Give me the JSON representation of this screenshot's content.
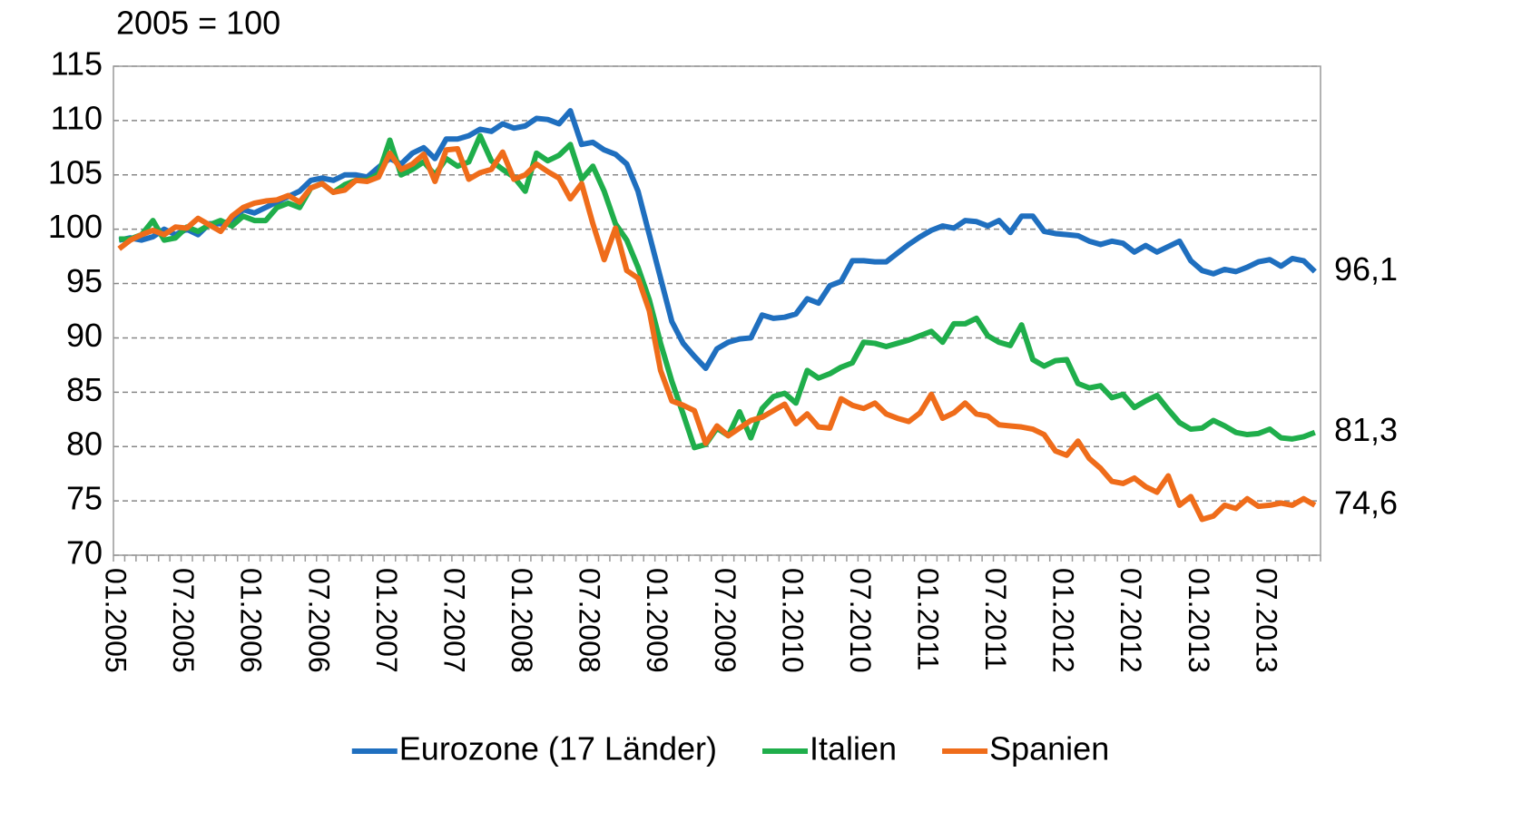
{
  "chart_data": {
    "type": "line",
    "title": "2005 = 100",
    "categories": [
      "01.2005",
      null,
      null,
      null,
      null,
      null,
      "07.2005",
      null,
      null,
      null,
      null,
      null,
      "01.2006",
      null,
      null,
      null,
      null,
      null,
      "07.2006",
      null,
      null,
      null,
      null,
      null,
      "01.2007",
      null,
      null,
      null,
      null,
      null,
      "07.2007",
      null,
      null,
      null,
      null,
      null,
      "01.2008",
      null,
      null,
      null,
      null,
      null,
      "07.2008",
      null,
      null,
      null,
      null,
      null,
      "01.2009",
      null,
      null,
      null,
      null,
      null,
      "07.2009",
      null,
      null,
      null,
      null,
      null,
      "01.2010",
      null,
      null,
      null,
      null,
      null,
      "07.2010",
      null,
      null,
      null,
      null,
      null,
      "01.2011",
      null,
      null,
      null,
      null,
      null,
      "07.2011",
      null,
      null,
      null,
      null,
      null,
      "01.2012",
      null,
      null,
      null,
      null,
      null,
      "07.2012",
      null,
      null,
      null,
      null,
      null,
      "01.2013",
      null,
      null,
      null,
      null,
      null,
      "07.2013",
      null,
      null,
      null,
      null
    ],
    "series": [
      {
        "name": "Eurozone (17 Länder)",
        "color": "#1f6fbf",
        "values": [
          99,
          99.2,
          99,
          99.3,
          100,
          99.5,
          100,
          99.5,
          100.5,
          100.5,
          100.8,
          101.8,
          101.5,
          102,
          102.5,
          103,
          103.5,
          104.5,
          104.7,
          104.5,
          105,
          105,
          104.8,
          105.7,
          106.5,
          106,
          107,
          107.5,
          106.5,
          108.3,
          108.3,
          108.6,
          109.2,
          109,
          109.7,
          109.3,
          109.5,
          110.2,
          110.1,
          109.7,
          110.9,
          107.8,
          108,
          107.3,
          106.9,
          106,
          103.5,
          99.5,
          95.5,
          91.5,
          89.5,
          88.3,
          87.2,
          89,
          89.6,
          89.9,
          90,
          92.1,
          91.8,
          91.9,
          92.2,
          93.6,
          93.2,
          94.8,
          95.2,
          97.1,
          97.1,
          97,
          97,
          97.8,
          98.6,
          99.3,
          99.9,
          100.3,
          100.1,
          100.8,
          100.7,
          100.3,
          100.8,
          99.7,
          101.2,
          101.2,
          99.8,
          99.6,
          99.5,
          99.4,
          98.9,
          98.6,
          98.9,
          98.7,
          97.9,
          98.5,
          97.9,
          98.4,
          98.9,
          97.1,
          96.2,
          95.9,
          96.3,
          96.1,
          96.5,
          97,
          97.2,
          96.6,
          97.3,
          97.1,
          96.1
        ],
        "value_labels": [
          null,
          null,
          null,
          null,
          null,
          null,
          null,
          null,
          null,
          null,
          null,
          null,
          null,
          null,
          null,
          null,
          null,
          null,
          null,
          null,
          null,
          null,
          null,
          null,
          null,
          null,
          null,
          null,
          null,
          null,
          null,
          null,
          null,
          null,
          null,
          null,
          null,
          null,
          null,
          null,
          null,
          null,
          null,
          null,
          null,
          null,
          null,
          null,
          null,
          null,
          null,
          null,
          null,
          null,
          null,
          null,
          null,
          null,
          null,
          null,
          null,
          null,
          null,
          null,
          null,
          null,
          null,
          null,
          null,
          null,
          null,
          null,
          null,
          null,
          null,
          null,
          null,
          null,
          null,
          null,
          null,
          null,
          null,
          null,
          null,
          null,
          null,
          null,
          null,
          null,
          null,
          null,
          null,
          null,
          null,
          null,
          null,
          null,
          null,
          null,
          null,
          null,
          null,
          null,
          null,
          null,
          "96,1"
        ]
      },
      {
        "name": "Italien",
        "color": "#1fae4b",
        "values": [
          99.1,
          99.1,
          99.5,
          100.8,
          99,
          99.2,
          100.2,
          99.8,
          100.4,
          100.8,
          100.3,
          101.2,
          100.8,
          100.8,
          102,
          102.4,
          102,
          103.8,
          104.2,
          103.4,
          104.1,
          104.5,
          104.5,
          105.1,
          108.2,
          105,
          105.5,
          106.2,
          105,
          106.5,
          105.8,
          106.2,
          108.6,
          106.3,
          105.5,
          104.8,
          103.5,
          107,
          106.3,
          106.8,
          107.8,
          104.6,
          105.8,
          103.5,
          100.5,
          99,
          96.5,
          93.5,
          89.5,
          86,
          83,
          79.9,
          80.2,
          81.7,
          81,
          83.2,
          80.8,
          83.5,
          84.6,
          84.9,
          84,
          87,
          86.3,
          86.7,
          87.3,
          87.7,
          89.6,
          89.5,
          89.2,
          89.5,
          89.8,
          90.2,
          90.6,
          89.6,
          91.3,
          91.3,
          91.8,
          90.2,
          89.6,
          89.3,
          91.2,
          88,
          87.4,
          87.9,
          88,
          85.8,
          85.4,
          85.6,
          84.5,
          84.8,
          83.6,
          84.2,
          84.7,
          83.4,
          82.2,
          81.6,
          81.7,
          82.4,
          81.9,
          81.3,
          81.1,
          81.2,
          81.6,
          80.8,
          80.7,
          80.9,
          81.3
        ],
        "value_labels": [
          null,
          null,
          null,
          null,
          null,
          null,
          null,
          null,
          null,
          null,
          null,
          null,
          null,
          null,
          null,
          null,
          null,
          null,
          null,
          null,
          null,
          null,
          null,
          null,
          null,
          null,
          null,
          null,
          null,
          null,
          null,
          null,
          null,
          null,
          null,
          null,
          null,
          null,
          null,
          null,
          null,
          null,
          null,
          null,
          null,
          null,
          null,
          null,
          null,
          null,
          null,
          null,
          null,
          null,
          null,
          null,
          null,
          null,
          null,
          null,
          null,
          null,
          null,
          null,
          null,
          null,
          null,
          null,
          null,
          null,
          null,
          null,
          null,
          null,
          null,
          null,
          null,
          null,
          null,
          null,
          null,
          null,
          null,
          null,
          null,
          null,
          null,
          null,
          null,
          null,
          null,
          null,
          null,
          null,
          null,
          null,
          null,
          null,
          null,
          null,
          null,
          null,
          null,
          null,
          null,
          null,
          "81,3"
        ]
      },
      {
        "name": "Spanien",
        "color": "#ef6c1a",
        "values": [
          98.2,
          99,
          99.5,
          99.9,
          99.5,
          100.2,
          100.1,
          101,
          100.4,
          99.8,
          101.2,
          102,
          102.4,
          102.6,
          102.7,
          103.1,
          102.5,
          103.8,
          104.2,
          103.4,
          103.6,
          104.5,
          104.4,
          104.8,
          107,
          105.5,
          106,
          106.9,
          104.4,
          107.3,
          107.4,
          104.6,
          105.2,
          105.5,
          107.1,
          104.6,
          105,
          106,
          105.3,
          104.7,
          102.8,
          104.2,
          100.5,
          97.2,
          100.1,
          96.2,
          95.5,
          92.5,
          87,
          84.2,
          83.8,
          83.3,
          80.3,
          81.9,
          81,
          81.7,
          82.4,
          82.7,
          83.3,
          83.9,
          82.1,
          83,
          81.8,
          81.7,
          84.4,
          83.8,
          83.5,
          84,
          83,
          82.6,
          82.3,
          83.1,
          84.8,
          82.6,
          83.1,
          84,
          83,
          82.8,
          82,
          81.9,
          81.8,
          81.6,
          81.1,
          79.6,
          79.2,
          80.5,
          78.9,
          78,
          76.8,
          76.6,
          77.1,
          76.3,
          75.8,
          77.3,
          74.6,
          75.4,
          73.3,
          73.6,
          74.6,
          74.3,
          75.2,
          74.5,
          74.6,
          74.8,
          74.6,
          75.2,
          74.6
        ],
        "value_labels": [
          null,
          null,
          null,
          null,
          null,
          null,
          null,
          null,
          null,
          null,
          null,
          null,
          null,
          null,
          null,
          null,
          null,
          null,
          null,
          null,
          null,
          null,
          null,
          null,
          null,
          null,
          null,
          null,
          null,
          null,
          null,
          null,
          null,
          null,
          null,
          null,
          null,
          null,
          null,
          null,
          null,
          null,
          null,
          null,
          null,
          null,
          null,
          null,
          null,
          null,
          null,
          null,
          null,
          null,
          null,
          null,
          null,
          null,
          null,
          null,
          null,
          null,
          null,
          null,
          null,
          null,
          null,
          null,
          null,
          null,
          null,
          null,
          null,
          null,
          null,
          null,
          null,
          null,
          null,
          null,
          null,
          null,
          null,
          null,
          null,
          null,
          null,
          null,
          null,
          null,
          null,
          null,
          null,
          null,
          null,
          null,
          null,
          null,
          null,
          null,
          null,
          null,
          null,
          null,
          null,
          null,
          "74,6"
        ]
      }
    ],
    "ylim": [
      70,
      115
    ],
    "yticks": [
      70,
      75,
      80,
      85,
      90,
      95,
      100,
      105,
      110,
      115
    ],
    "grid": true,
    "legend": "bottom"
  }
}
